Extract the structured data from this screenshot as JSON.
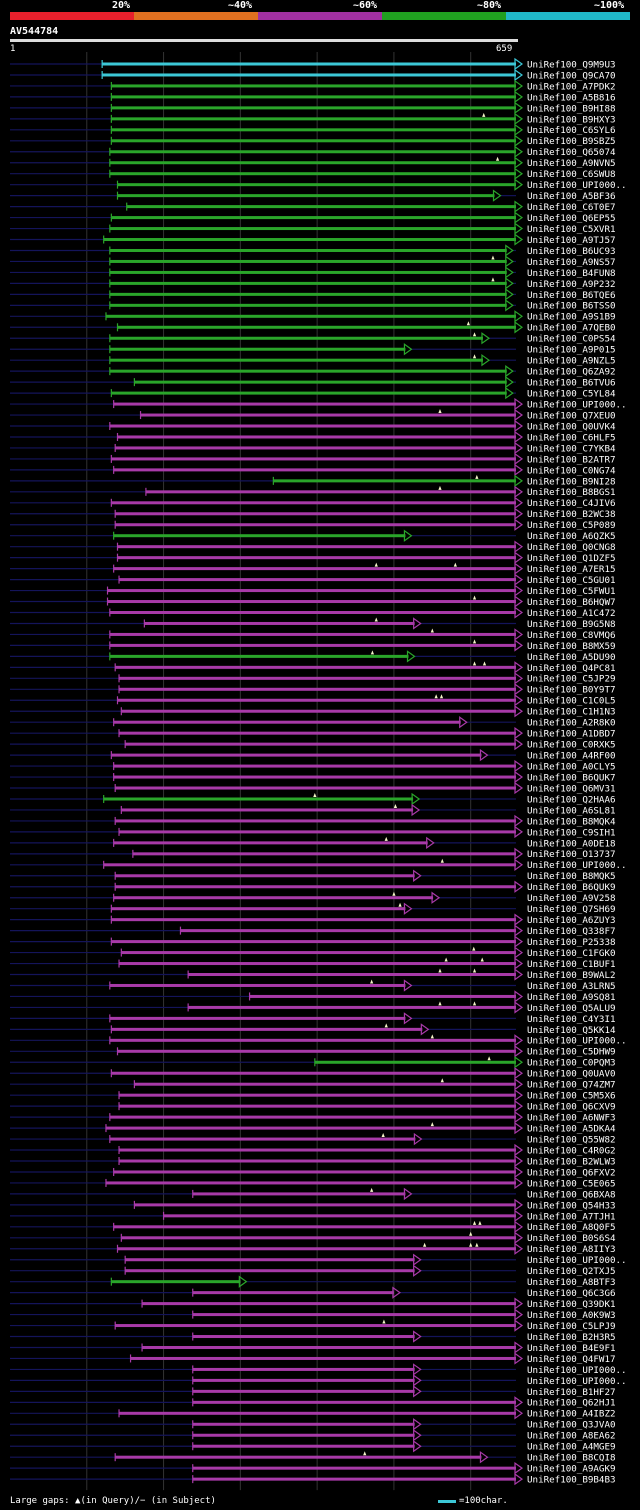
{
  "legend": {
    "labels": [
      "20%",
      "~40%",
      "~60%",
      "~80%",
      "~100%"
    ],
    "colors": [
      "#e8202c",
      "#e07020",
      "#a030a0",
      "#20a020",
      "#20b8c8"
    ]
  },
  "query": {
    "name": "AV544784",
    "start": "1",
    "end": "659",
    "length": 659
  },
  "colors": {
    "cyan": "#3cc7d6",
    "green": "#2aa52a",
    "magenta": "#a83aa8",
    "navy": "#14145a",
    "grid": "#333333"
  },
  "footer": {
    "gaps": "Large gaps: ▲(in Query)/− (in Subject)",
    "scale": "=100char."
  },
  "hits": [
    {
      "name": "UniRef100_Q9M9U3",
      "c": "c",
      "s": 120,
      "e": 659,
      "a": []
    },
    {
      "name": "UniRef100_Q9CA70",
      "c": "c",
      "s": 120,
      "e": 659,
      "a": []
    },
    {
      "name": "UniRef100_A7PDK2",
      "c": "g",
      "s": 132,
      "e": 659,
      "a": []
    },
    {
      "name": "UniRef100_A5B816",
      "c": "g",
      "s": 132,
      "e": 659,
      "a": []
    },
    {
      "name": "UniRef100_B9HI88",
      "c": "g",
      "s": 132,
      "e": 659,
      "a": []
    },
    {
      "name": "UniRef100_B9HXY3",
      "c": "g",
      "s": 132,
      "e": 659,
      "a": [
        617
      ]
    },
    {
      "name": "UniRef100_C6SYL6",
      "c": "g",
      "s": 132,
      "e": 659,
      "a": []
    },
    {
      "name": "UniRef100_B9SBZ5",
      "c": "g",
      "s": 132,
      "e": 659,
      "a": []
    },
    {
      "name": "UniRef100_Q65074",
      "c": "g",
      "s": 130,
      "e": 659,
      "a": []
    },
    {
      "name": "UniRef100_A9NVN5",
      "c": "g",
      "s": 130,
      "e": 659,
      "a": [
        635
      ]
    },
    {
      "name": "UniRef100_C6SWU8",
      "c": "g",
      "s": 130,
      "e": 659,
      "a": []
    },
    {
      "name": "UniRef100_UPI000..",
      "c": "g",
      "s": 140,
      "e": 659,
      "a": []
    },
    {
      "name": "UniRef100_A5BF36",
      "c": "g",
      "s": 140,
      "e": 631,
      "a": []
    },
    {
      "name": "UniRef100_C6T0E7",
      "c": "g",
      "s": 152,
      "e": 659,
      "a": []
    },
    {
      "name": "UniRef100_Q6EP55",
      "c": "g",
      "s": 132,
      "e": 659,
      "a": []
    },
    {
      "name": "UniRef100_C5XVR1",
      "c": "g",
      "s": 130,
      "e": 659,
      "a": []
    },
    {
      "name": "UniRef100_A9TJ57",
      "c": "g",
      "s": 122,
      "e": 659,
      "a": []
    },
    {
      "name": "UniRef100_B6UC93",
      "c": "g",
      "s": 130,
      "e": 647,
      "a": []
    },
    {
      "name": "UniRef100_A9NS57",
      "c": "g",
      "s": 130,
      "e": 647,
      "a": [
        629
      ]
    },
    {
      "name": "UniRef100_B4FUN8",
      "c": "g",
      "s": 130,
      "e": 647,
      "a": []
    },
    {
      "name": "UniRef100_A9P232",
      "c": "g",
      "s": 130,
      "e": 647,
      "a": [
        629
      ]
    },
    {
      "name": "UniRef100_B6TQE6",
      "c": "g",
      "s": 130,
      "e": 647,
      "a": []
    },
    {
      "name": "UniRef100_B6TSS0",
      "c": "g",
      "s": 130,
      "e": 647,
      "a": []
    },
    {
      "name": "UniRef100_A9S1B9",
      "c": "g",
      "s": 125,
      "e": 659,
      "a": []
    },
    {
      "name": "UniRef100_A7QEB0",
      "c": "g",
      "s": 140,
      "e": 659,
      "a": [
        597
      ]
    },
    {
      "name": "UniRef100_C0PS54",
      "c": "g",
      "s": 130,
      "e": 616,
      "a": [
        605
      ]
    },
    {
      "name": "UniRef100_A9P015",
      "c": "g",
      "s": 130,
      "e": 515,
      "a": []
    },
    {
      "name": "UniRef100_A9NZL5",
      "c": "g",
      "s": 130,
      "e": 616,
      "a": [
        605
      ]
    },
    {
      "name": "UniRef100_Q6ZA92",
      "c": "g",
      "s": 130,
      "e": 647,
      "a": []
    },
    {
      "name": "UniRef100_B6TVU6",
      "c": "g",
      "s": 162,
      "e": 647,
      "a": []
    },
    {
      "name": "UniRef100_C5YL84",
      "c": "g",
      "s": 132,
      "e": 647,
      "a": []
    },
    {
      "name": "UniRef100_UPI000..",
      "c": "m",
      "s": 135,
      "e": 659,
      "a": []
    },
    {
      "name": "UniRef100_Q7XEU0",
      "c": "m",
      "s": 170,
      "e": 659,
      "a": [
        560
      ]
    },
    {
      "name": "UniRef100_Q0UVK4",
      "c": "m",
      "s": 130,
      "e": 659,
      "a": []
    },
    {
      "name": "UniRef100_C6HLF5",
      "c": "m",
      "s": 140,
      "e": 659,
      "a": []
    },
    {
      "name": "UniRef100_C7YKB4",
      "c": "m",
      "s": 137,
      "e": 659,
      "a": []
    },
    {
      "name": "UniRef100_B2ATR7",
      "c": "m",
      "s": 132,
      "e": 659,
      "a": []
    },
    {
      "name": "UniRef100_C0NG74",
      "c": "m",
      "s": 135,
      "e": 659,
      "a": []
    },
    {
      "name": "UniRef100_B9NI28",
      "c": "g",
      "s": 343,
      "e": 659,
      "a": [
        608
      ]
    },
    {
      "name": "UniRef100_B8BGS1",
      "c": "m",
      "s": 177,
      "e": 659,
      "a": [
        560
      ]
    },
    {
      "name": "UniRef100_C4JIV6",
      "c": "m",
      "s": 132,
      "e": 659,
      "a": []
    },
    {
      "name": "UniRef100_B2WC38",
      "c": "m",
      "s": 137,
      "e": 659,
      "a": []
    },
    {
      "name": "UniRef100_C5P089",
      "c": "m",
      "s": 137,
      "e": 659,
      "a": []
    },
    {
      "name": "UniRef100_A6QZK5",
      "c": "g",
      "s": 135,
      "e": 515,
      "a": []
    },
    {
      "name": "UniRef100_Q0CNG8",
      "c": "m",
      "s": 140,
      "e": 659,
      "a": []
    },
    {
      "name": "UniRef100_Q1DZF5",
      "c": "m",
      "s": 140,
      "e": 659,
      "a": []
    },
    {
      "name": "UniRef100_A7ER15",
      "c": "m",
      "s": 135,
      "e": 659,
      "a": [
        477,
        580
      ]
    },
    {
      "name": "UniRef100_C5GU01",
      "c": "m",
      "s": 142,
      "e": 659,
      "a": []
    },
    {
      "name": "UniRef100_C5FWU1",
      "c": "m",
      "s": 127,
      "e": 659,
      "a": []
    },
    {
      "name": "UniRef100_B6HQW7",
      "c": "m",
      "s": 127,
      "e": 659,
      "a": [
        605
      ]
    },
    {
      "name": "UniRef100_A1C472",
      "c": "m",
      "s": 130,
      "e": 659,
      "a": []
    },
    {
      "name": "UniRef100_B9G5N8",
      "c": "m",
      "s": 175,
      "e": 527,
      "a": [
        477
      ]
    },
    {
      "name": "UniRef100_C8VMQ6",
      "c": "m",
      "s": 130,
      "e": 659,
      "a": [
        550
      ]
    },
    {
      "name": "UniRef100_B8MX59",
      "c": "m",
      "s": 130,
      "e": 659,
      "a": [
        605
      ]
    },
    {
      "name": "UniRef100_A5DU90",
      "c": "g",
      "s": 130,
      "e": 519,
      "a": [
        472
      ]
    },
    {
      "name": "UniRef100_Q4PC81",
      "c": "m",
      "s": 137,
      "e": 659,
      "a": [
        605,
        618
      ]
    },
    {
      "name": "UniRef100_C5JP29",
      "c": "m",
      "s": 142,
      "e": 659,
      "a": []
    },
    {
      "name": "UniRef100_B0Y9T7",
      "c": "m",
      "s": 142,
      "e": 659,
      "a": []
    },
    {
      "name": "UniRef100_C1C0L5",
      "c": "m",
      "s": 140,
      "e": 659,
      "a": [
        555,
        562
      ]
    },
    {
      "name": "UniRef100_C1H1N3",
      "c": "m",
      "s": 145,
      "e": 659,
      "a": []
    },
    {
      "name": "UniRef100_A2R8K0",
      "c": "m",
      "s": 135,
      "e": 587,
      "a": []
    },
    {
      "name": "UniRef100_A1DBD7",
      "c": "m",
      "s": 142,
      "e": 659,
      "a": []
    },
    {
      "name": "UniRef100_C0RXK5",
      "c": "m",
      "s": 150,
      "e": 659,
      "a": []
    },
    {
      "name": "UniRef100_A4RF00",
      "c": "m",
      "s": 132,
      "e": 614,
      "a": []
    },
    {
      "name": "UniRef100_A0CLY5",
      "c": "m",
      "s": 135,
      "e": 659,
      "a": []
    },
    {
      "name": "UniRef100_B6QUK7",
      "c": "m",
      "s": 135,
      "e": 659,
      "a": []
    },
    {
      "name": "UniRef100_Q6MV31",
      "c": "m",
      "s": 137,
      "e": 659,
      "a": []
    },
    {
      "name": "UniRef100_Q2HAA6",
      "c": "g",
      "s": 122,
      "e": 525,
      "a": [
        397
      ]
    },
    {
      "name": "UniRef100_A6SL81",
      "c": "m",
      "s": 145,
      "e": 525,
      "a": [
        502
      ]
    },
    {
      "name": "UniRef100_B8MQK4",
      "c": "m",
      "s": 137,
      "e": 659,
      "a": []
    },
    {
      "name": "UniRef100_C9SIH1",
      "c": "m",
      "s": 142,
      "e": 659,
      "a": []
    },
    {
      "name": "UniRef100_A0DE18",
      "c": "m",
      "s": 135,
      "e": 544,
      "a": [
        490
      ]
    },
    {
      "name": "UniRef100_O13737",
      "c": "m",
      "s": 160,
      "e": 659,
      "a": []
    },
    {
      "name": "UniRef100_UPI000..",
      "c": "m",
      "s": 122,
      "e": 659,
      "a": [
        563
      ]
    },
    {
      "name": "UniRef100_B8MQK5",
      "c": "m",
      "s": 137,
      "e": 527,
      "a": []
    },
    {
      "name": "UniRef100_B6QUK9",
      "c": "m",
      "s": 137,
      "e": 659,
      "a": []
    },
    {
      "name": "UniRef100_A9V258",
      "c": "m",
      "s": 135,
      "e": 551,
      "a": [
        500
      ]
    },
    {
      "name": "UniRef100_Q7SH69",
      "c": "m",
      "s": 132,
      "e": 515,
      "a": [
        508
      ]
    },
    {
      "name": "UniRef100_A6ZUY3",
      "c": "m",
      "s": 132,
      "e": 659,
      "a": []
    },
    {
      "name": "UniRef100_Q338F7",
      "c": "m",
      "s": 222,
      "e": 659,
      "a": []
    },
    {
      "name": "UniRef100_P25338",
      "c": "m",
      "s": 132,
      "e": 659,
      "a": []
    },
    {
      "name": "UniRef100_C1FGK0",
      "c": "m",
      "s": 145,
      "e": 659,
      "a": [
        604
      ]
    },
    {
      "name": "UniRef100_C1BUF1",
      "c": "m",
      "s": 142,
      "e": 659,
      "a": [
        568,
        615
      ]
    },
    {
      "name": "UniRef100_B9WAL2",
      "c": "m",
      "s": 232,
      "e": 659,
      "a": [
        560,
        605
      ]
    },
    {
      "name": "UniRef100_A3LRN5",
      "c": "m",
      "s": 130,
      "e": 515,
      "a": [
        471
      ]
    },
    {
      "name": "UniRef100_A9SQ81",
      "c": "m",
      "s": 312,
      "e": 659,
      "a": []
    },
    {
      "name": "UniRef100_Q5ALU9",
      "c": "m",
      "s": 232,
      "e": 659,
      "a": [
        560,
        605
      ]
    },
    {
      "name": "UniRef100_C4Y3I1",
      "c": "m",
      "s": 130,
      "e": 515,
      "a": []
    },
    {
      "name": "UniRef100_Q5KK14",
      "c": "m",
      "s": 132,
      "e": 537,
      "a": [
        490
      ]
    },
    {
      "name": "UniRef100_UPI000..",
      "c": "m",
      "s": 130,
      "e": 659,
      "a": [
        550
      ]
    },
    {
      "name": "UniRef100_C5DHW9",
      "c": "m",
      "s": 140,
      "e": 659,
      "a": []
    },
    {
      "name": "UniRef100_C0PQM3",
      "c": "g",
      "s": 397,
      "e": 659,
      "a": [
        624
      ]
    },
    {
      "name": "UniRef100_Q0UAV0",
      "c": "m",
      "s": 132,
      "e": 659,
      "a": []
    },
    {
      "name": "UniRef100_Q74ZM7",
      "c": "m",
      "s": 162,
      "e": 659,
      "a": [
        563
      ]
    },
    {
      "name": "UniRef100_C5M5X6",
      "c": "m",
      "s": 142,
      "e": 659,
      "a": []
    },
    {
      "name": "UniRef100_Q6CXV9",
      "c": "m",
      "s": 142,
      "e": 659,
      "a": []
    },
    {
      "name": "UniRef100_A6NWF3",
      "c": "m",
      "s": 130,
      "e": 659,
      "a": []
    },
    {
      "name": "UniRef100_A5DKA4",
      "c": "m",
      "s": 125,
      "e": 659,
      "a": [
        550
      ]
    },
    {
      "name": "UniRef100_Q55W82",
      "c": "m",
      "s": 130,
      "e": 528,
      "a": [
        486
      ]
    },
    {
      "name": "UniRef100_C4R0G2",
      "c": "m",
      "s": 142,
      "e": 659,
      "a": []
    },
    {
      "name": "UniRef100_B2WLW3",
      "c": "m",
      "s": 142,
      "e": 659,
      "a": []
    },
    {
      "name": "UniRef100_Q6FXV2",
      "c": "m",
      "s": 135,
      "e": 659,
      "a": []
    },
    {
      "name": "UniRef100_C5E065",
      "c": "m",
      "s": 125,
      "e": 659,
      "a": []
    },
    {
      "name": "UniRef100_Q6BXA8",
      "c": "m",
      "s": 238,
      "e": 515,
      "a": [
        471
      ]
    },
    {
      "name": "UniRef100_Q54H33",
      "c": "m",
      "s": 162,
      "e": 659,
      "a": []
    },
    {
      "name": "UniRef100_A7TJH1",
      "c": "m",
      "s": 200,
      "e": 659,
      "a": []
    },
    {
      "name": "UniRef100_A8Q0F5",
      "c": "m",
      "s": 135,
      "e": 659,
      "a": [
        605,
        612
      ]
    },
    {
      "name": "UniRef100_B0S6S4",
      "c": "m",
      "s": 145,
      "e": 659,
      "a": [
        600
      ]
    },
    {
      "name": "UniRef100_A8IIY3",
      "c": "m",
      "s": 140,
      "e": 659,
      "a": [
        540,
        600,
        608
      ]
    },
    {
      "name": "UniRef100_UPI000..",
      "c": "m",
      "s": 150,
      "e": 527,
      "a": []
    },
    {
      "name": "UniRef100_Q2TXJ5",
      "c": "m",
      "s": 150,
      "e": 527,
      "a": []
    },
    {
      "name": "UniRef100_A8BTF3",
      "c": "g",
      "s": 132,
      "e": 300,
      "a": []
    },
    {
      "name": "UniRef100_Q6C3G6",
      "c": "m",
      "s": 238,
      "e": 500,
      "a": []
    },
    {
      "name": "UniRef100_Q39DK1",
      "c": "m",
      "s": 172,
      "e": 659,
      "a": []
    },
    {
      "name": "UniRef100_A0K9W3",
      "c": "m",
      "s": 238,
      "e": 659,
      "a": []
    },
    {
      "name": "UniRef100_C5LPJ9",
      "c": "m",
      "s": 137,
      "e": 659,
      "a": [
        487
      ]
    },
    {
      "name": "UniRef100_B2H3R5",
      "c": "m",
      "s": 238,
      "e": 527,
      "a": []
    },
    {
      "name": "UniRef100_B4E9F1",
      "c": "m",
      "s": 172,
      "e": 659,
      "a": []
    },
    {
      "name": "UniRef100_Q4FW17",
      "c": "m",
      "s": 157,
      "e": 659,
      "a": []
    },
    {
      "name": "UniRef100_UPI000..",
      "c": "m",
      "s": 238,
      "e": 527,
      "a": []
    },
    {
      "name": "UniRef100_UPI000..",
      "c": "m",
      "s": 238,
      "e": 527,
      "a": []
    },
    {
      "name": "UniRef100_B1HF27",
      "c": "m",
      "s": 238,
      "e": 527,
      "a": []
    },
    {
      "name": "UniRef100_Q62HJ1",
      "c": "m",
      "s": 238,
      "e": 659,
      "a": []
    },
    {
      "name": "UniRef100_A4IBZ2",
      "c": "m",
      "s": 142,
      "e": 659,
      "a": []
    },
    {
      "name": "UniRef100_Q3JVA0",
      "c": "m",
      "s": 238,
      "e": 527,
      "a": []
    },
    {
      "name": "UniRef100_A8EA62",
      "c": "m",
      "s": 238,
      "e": 527,
      "a": []
    },
    {
      "name": "UniRef100_A4MGE9",
      "c": "m",
      "s": 238,
      "e": 527,
      "a": []
    },
    {
      "name": "UniRef100_B8CQI8",
      "c": "m",
      "s": 137,
      "e": 614,
      "a": [
        462
      ]
    },
    {
      "name": "UniRef100_A9AGK9",
      "c": "m",
      "s": 238,
      "e": 659,
      "a": []
    },
    {
      "name": "UniRef100_B9B4B3",
      "c": "m",
      "s": 238,
      "e": 659,
      "a": []
    }
  ]
}
